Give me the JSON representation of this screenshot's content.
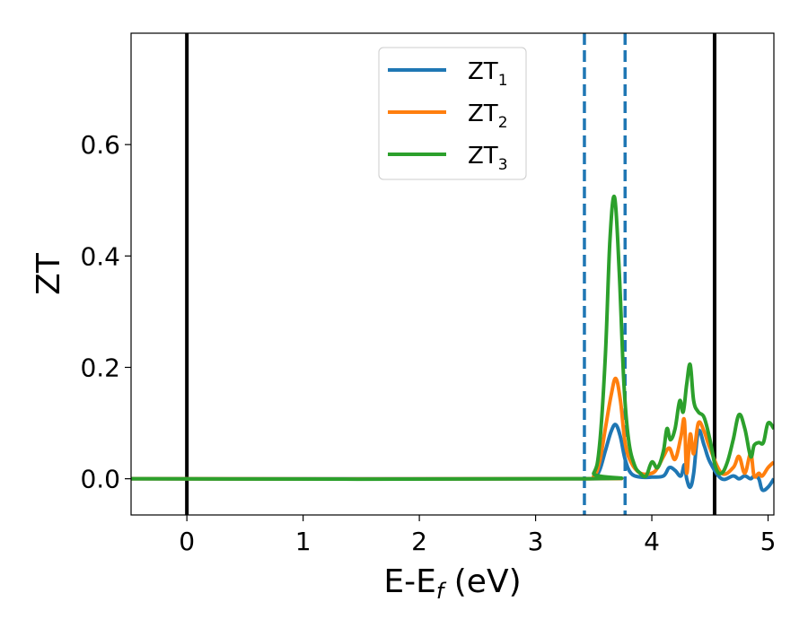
{
  "chart_data": {
    "type": "line",
    "xlabel_main": "E-E",
    "xlabel_sub": "f",
    "xlabel_unit": " (eV)",
    "ylabel": "ZT",
    "xlim": [
      -0.48,
      5.05
    ],
    "ylim": [
      -0.065,
      0.8
    ],
    "xticks": [
      0,
      1,
      2,
      3,
      4,
      5
    ],
    "yticks": [
      0.0,
      0.2,
      0.4,
      0.6
    ],
    "xtick_labels": [
      "0",
      "1",
      "2",
      "3",
      "4",
      "5"
    ],
    "ytick_labels": [
      "0.0",
      "0.2",
      "0.4",
      "0.6"
    ],
    "legend_position": "top-center",
    "colors": {
      "series1": "#1f77b4",
      "series2": "#ff7f0e",
      "series3": "#2ca02c",
      "vline": "#000000"
    },
    "vertical_lines": [
      {
        "x": 0.0,
        "style": "solid",
        "color": "#000000"
      },
      {
        "x": 4.54,
        "style": "solid",
        "color": "#000000"
      },
      {
        "x": 3.42,
        "style": "dashed",
        "color": "#1f77b4"
      },
      {
        "x": 3.77,
        "style": "dashed",
        "color": "#1f77b4"
      }
    ],
    "series": [
      {
        "name": "ZT",
        "sub": "1",
        "color": "#1f77b4",
        "x": [
          -0.48,
          3.4,
          3.5,
          3.55,
          3.6,
          3.65,
          3.69,
          3.73,
          3.77,
          3.82,
          3.9,
          4.0,
          4.1,
          4.15,
          4.2,
          4.25,
          4.28,
          4.3,
          4.33,
          4.36,
          4.4,
          4.45,
          4.5,
          4.6,
          4.7,
          4.75,
          4.8,
          4.85,
          4.88,
          4.92,
          4.95,
          5.0,
          5.05
        ],
        "y": [
          0.0,
          0.0,
          0.003,
          0.015,
          0.05,
          0.085,
          0.097,
          0.075,
          0.035,
          0.01,
          0.003,
          0.003,
          0.005,
          0.02,
          0.015,
          0.005,
          0.025,
          0.0,
          -0.015,
          0.01,
          0.085,
          0.06,
          0.03,
          0.0,
          0.005,
          0.0,
          0.005,
          0.0,
          0.005,
          0.0,
          -0.02,
          -0.015,
          0.0
        ]
      },
      {
        "name": "ZT",
        "sub": "2",
        "color": "#ff7f0e",
        "x": [
          -0.48,
          3.4,
          3.5,
          3.55,
          3.6,
          3.65,
          3.69,
          3.73,
          3.77,
          3.82,
          3.9,
          4.0,
          4.05,
          4.1,
          4.15,
          4.2,
          4.25,
          4.28,
          4.3,
          4.33,
          4.36,
          4.4,
          4.45,
          4.5,
          4.6,
          4.7,
          4.75,
          4.8,
          4.85,
          4.88,
          4.92,
          4.95,
          5.0,
          5.05
        ],
        "y": [
          0.0,
          0.0,
          0.005,
          0.03,
          0.09,
          0.15,
          0.18,
          0.14,
          0.065,
          0.03,
          0.01,
          0.01,
          0.02,
          0.04,
          0.055,
          0.035,
          0.075,
          0.105,
          0.01,
          0.08,
          0.045,
          0.1,
          0.085,
          0.055,
          0.01,
          0.02,
          0.04,
          0.01,
          0.045,
          0.005,
          0.01,
          0.005,
          0.02,
          0.03
        ]
      },
      {
        "name": "ZT",
        "sub": "3",
        "color": "#2ca02c",
        "x": [
          -0.48,
          3.4,
          3.5,
          3.55,
          3.6,
          3.64,
          3.68,
          3.72,
          3.76,
          3.8,
          3.85,
          3.9,
          3.95,
          4.0,
          4.05,
          4.1,
          4.13,
          4.16,
          4.2,
          4.24,
          4.27,
          4.3,
          4.33,
          4.36,
          4.4,
          4.45,
          4.5,
          4.55,
          4.6,
          4.65,
          4.7,
          4.75,
          4.8,
          4.85,
          4.88,
          4.92,
          4.96,
          5.0,
          5.05
        ],
        "y": [
          0.0,
          0.0,
          0.01,
          0.06,
          0.22,
          0.43,
          0.505,
          0.37,
          0.17,
          0.07,
          0.025,
          0.01,
          0.005,
          0.03,
          0.02,
          0.05,
          0.09,
          0.07,
          0.09,
          0.14,
          0.12,
          0.17,
          0.205,
          0.14,
          0.12,
          0.11,
          0.07,
          0.02,
          0.01,
          0.03,
          0.07,
          0.115,
          0.09,
          0.04,
          0.06,
          0.065,
          0.065,
          0.1,
          0.09
        ]
      }
    ]
  }
}
